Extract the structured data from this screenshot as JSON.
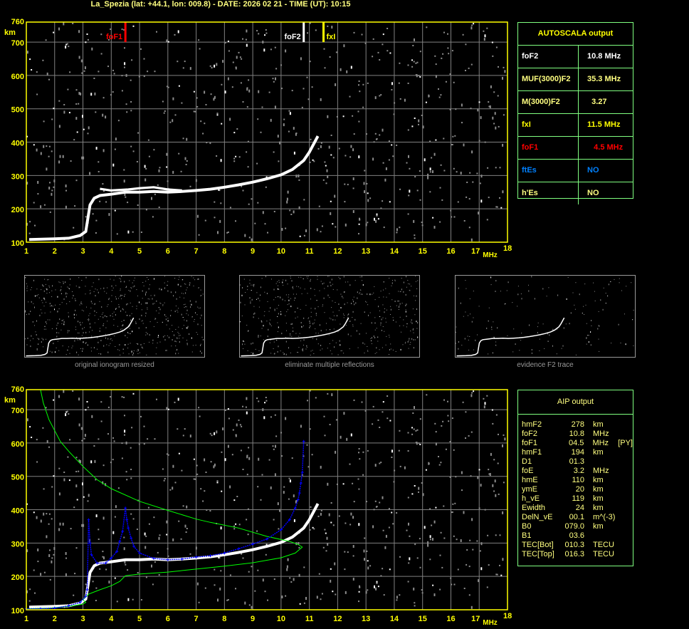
{
  "header": {
    "title": "La_Spezia (lat: +44.1, lon: 009.8) - DATE: 2026 02 21 - TIME (UT): 10:15"
  },
  "colors": {
    "axis": "#ffff00",
    "grid": "#808080",
    "table_border": "#80ff80",
    "foF1": "#ff0000",
    "foF2": "#ffffff",
    "fxI": "#ffff00",
    "ftEs": "#0080ff",
    "fit": "#0000ff",
    "profile": "#00ff00"
  },
  "autoscala": {
    "title": "AUTOSCALA output",
    "rows": [
      {
        "key": "foF2",
        "value": "10.8 MHz",
        "color": "#ffffff"
      },
      {
        "key": "MUF(3000)F2",
        "value": "35.3 MHz",
        "color": "#ffff80"
      },
      {
        "key": "M(3000)F2",
        "value": "  3.27",
        "color": "#ffff80"
      },
      {
        "key": "fxI",
        "value": "11.5 MHz",
        "color": "#ffff00"
      },
      {
        "key": "foF1",
        "value": "   4.5 MHz",
        "color": "#ff0000"
      },
      {
        "key": "ftEs",
        "value": "NO",
        "color": "#0080ff"
      },
      {
        "key": "h'Es",
        "value": "NO",
        "color": "#ffff80"
      }
    ]
  },
  "aip": {
    "title": "AIP output",
    "rows": [
      {
        "name": "hmF2",
        "value": "278",
        "unit": "km",
        "flag": ""
      },
      {
        "name": "foF2",
        "value": "10.8",
        "unit": "MHz",
        "flag": ""
      },
      {
        "name": "foF1",
        "value": "04.5",
        "unit": "MHz",
        "flag": "[PY]"
      },
      {
        "name": "hmF1",
        "value": "194",
        "unit": "km",
        "flag": ""
      },
      {
        "name": "D1",
        "value": "01.3",
        "unit": "",
        "flag": ""
      },
      {
        "name": "foE",
        "value": "3.2",
        "unit": "MHz",
        "flag": ""
      },
      {
        "name": "hmE",
        "value": "110",
        "unit": "km",
        "flag": ""
      },
      {
        "name": "ymE",
        "value": "20",
        "unit": "km",
        "flag": ""
      },
      {
        "name": "h_vE",
        "value": "119",
        "unit": "km",
        "flag": ""
      },
      {
        "name": "Ewidth",
        "value": "24",
        "unit": "km",
        "flag": ""
      },
      {
        "name": "DelN_vE",
        "value": "00.1",
        "unit": "m^(-3)",
        "flag": ""
      },
      {
        "name": "B0",
        "value": "079.0",
        "unit": "km",
        "flag": ""
      },
      {
        "name": "B1",
        "value": "03.6",
        "unit": "",
        "flag": ""
      },
      {
        "name": "TEC[Bot]",
        "value": "010.3",
        "unit": "TECU",
        "flag": ""
      },
      {
        "name": "TEC[Top]",
        "value": "016.3",
        "unit": "TECU",
        "flag": ""
      }
    ]
  },
  "thumbnails": [
    {
      "caption": "original ionogram resized"
    },
    {
      "caption": "eliminate multiple reflections"
    },
    {
      "caption": "evidence F2 trace"
    }
  ],
  "chart_data": [
    {
      "type": "scatter",
      "xlim": [
        1,
        18
      ],
      "ylim": [
        100,
        760
      ],
      "xticks": [
        "1",
        "2",
        "3",
        "4",
        "5",
        "6",
        "7",
        "8",
        "9",
        "10",
        "11",
        "12",
        "13",
        "14",
        "15",
        "16",
        "17",
        "18"
      ],
      "yticks": [
        "100",
        "200",
        "300",
        "400",
        "500",
        "600",
        "700",
        "760"
      ],
      "xunit": "MHz",
      "yunit": "km",
      "grid": true,
      "markers": [
        {
          "label": "foF1",
          "freq": 4.5,
          "color": "#ff0000"
        },
        {
          "label": "foF2",
          "freq": 10.8,
          "color": "#ffffff"
        },
        {
          "label": "fxI",
          "freq": 11.5,
          "color": "#ffff00"
        }
      ],
      "trace": [
        [
          1.1,
          108
        ],
        [
          2.0,
          110
        ],
        [
          2.5,
          112
        ],
        [
          2.9,
          120
        ],
        [
          3.1,
          132
        ],
        [
          3.25,
          212
        ],
        [
          3.4,
          232
        ],
        [
          3.6,
          240
        ],
        [
          4.0,
          244
        ],
        [
          4.5,
          250
        ],
        [
          5.0,
          250
        ],
        [
          5.5,
          252
        ],
        [
          6.0,
          250
        ],
        [
          6.5,
          252
        ],
        [
          7.0,
          255
        ],
        [
          7.5,
          259
        ],
        [
          8.0,
          265
        ],
        [
          8.5,
          272
        ],
        [
          9.0,
          280
        ],
        [
          9.5,
          290
        ],
        [
          10.0,
          302
        ],
        [
          10.4,
          318
        ],
        [
          10.8,
          345
        ],
        [
          11.0,
          370
        ],
        [
          11.3,
          418
        ]
      ],
      "trace_upper": [
        [
          3.6,
          260
        ],
        [
          4.0,
          255
        ],
        [
          4.6,
          258
        ],
        [
          5.0,
          262
        ],
        [
          5.5,
          265
        ],
        [
          6.0,
          258
        ],
        [
          6.5,
          255
        ]
      ]
    },
    {
      "type": "line",
      "xlim": [
        1,
        18
      ],
      "ylim": [
        100,
        760
      ],
      "xticks": [
        "1",
        "2",
        "3",
        "4",
        "5",
        "6",
        "7",
        "8",
        "9",
        "10",
        "11",
        "12",
        "13",
        "14",
        "15",
        "16",
        "17",
        "18"
      ],
      "yticks": [
        "100",
        "200",
        "300",
        "400",
        "500",
        "600",
        "700",
        "760"
      ],
      "xunit": "MHz",
      "yunit": "km",
      "grid": true,
      "fitted_trace": [
        [
          1.0,
          103
        ],
        [
          1.5,
          103
        ],
        [
          2.0,
          105
        ],
        [
          2.5,
          112
        ],
        [
          2.9,
          122
        ],
        [
          3.1,
          140
        ],
        [
          3.15,
          160
        ],
        [
          3.2,
          370
        ],
        [
          3.25,
          300
        ],
        [
          3.3,
          265
        ],
        [
          3.5,
          240
        ],
        [
          3.8,
          240
        ],
        [
          4.0,
          255
        ],
        [
          4.2,
          275
        ],
        [
          4.3,
          305
        ],
        [
          4.4,
          335
        ],
        [
          4.5,
          405
        ],
        [
          4.55,
          370
        ],
        [
          4.6,
          345
        ],
        [
          4.7,
          315
        ],
        [
          4.8,
          290
        ],
        [
          5.0,
          270
        ],
        [
          5.5,
          254
        ],
        [
          6.0,
          250
        ],
        [
          6.5,
          252
        ],
        [
          7.0,
          258
        ],
        [
          7.5,
          262
        ],
        [
          8.0,
          270
        ],
        [
          8.5,
          283
        ],
        [
          9.0,
          297
        ],
        [
          9.5,
          312
        ],
        [
          10.0,
          340
        ],
        [
          10.3,
          370
        ],
        [
          10.5,
          405
        ],
        [
          10.6,
          430
        ],
        [
          10.65,
          450
        ],
        [
          10.7,
          480
        ],
        [
          10.75,
          512
        ],
        [
          10.8,
          605
        ]
      ],
      "profile": [
        [
          1.0,
          103
        ],
        [
          1.8,
          105
        ],
        [
          2.5,
          110
        ],
        [
          3.0,
          117
        ],
        [
          3.1,
          122
        ],
        [
          3.0,
          130
        ],
        [
          3.2,
          147
        ],
        [
          3.6,
          160
        ],
        [
          4.0,
          172
        ],
        [
          4.3,
          185
        ],
        [
          4.5,
          202
        ],
        [
          5.0,
          207
        ],
        [
          6.0,
          213
        ],
        [
          7.0,
          222
        ],
        [
          8.0,
          231
        ],
        [
          9.0,
          241
        ],
        [
          10.0,
          256
        ],
        [
          10.5,
          270
        ],
        [
          10.75,
          288
        ],
        [
          10.6,
          296
        ],
        [
          10.3,
          305
        ],
        [
          9.5,
          320
        ],
        [
          8.5,
          345
        ],
        [
          7.5,
          362
        ],
        [
          7.0,
          372
        ],
        [
          6.0,
          398
        ],
        [
          5.0,
          425
        ],
        [
          4.0,
          463
        ],
        [
          3.5,
          490
        ],
        [
          3.0,
          530
        ],
        [
          2.5,
          575
        ],
        [
          2.2,
          605
        ],
        [
          1.8,
          670
        ],
        [
          1.6,
          720
        ],
        [
          1.5,
          760
        ]
      ],
      "trace": [
        [
          1.1,
          108
        ],
        [
          2.0,
          110
        ],
        [
          2.5,
          112
        ],
        [
          2.9,
          120
        ],
        [
          3.1,
          132
        ],
        [
          3.25,
          212
        ],
        [
          3.4,
          232
        ],
        [
          3.6,
          240
        ],
        [
          4.0,
          244
        ],
        [
          4.5,
          250
        ],
        [
          5.0,
          250
        ],
        [
          5.5,
          252
        ],
        [
          6.0,
          250
        ],
        [
          6.5,
          252
        ],
        [
          7.0,
          255
        ],
        [
          7.5,
          259
        ],
        [
          8.0,
          265
        ],
        [
          8.5,
          272
        ],
        [
          9.0,
          280
        ],
        [
          9.5,
          290
        ],
        [
          10.0,
          302
        ],
        [
          10.4,
          318
        ],
        [
          10.8,
          345
        ],
        [
          11.0,
          370
        ],
        [
          11.3,
          418
        ]
      ]
    }
  ]
}
